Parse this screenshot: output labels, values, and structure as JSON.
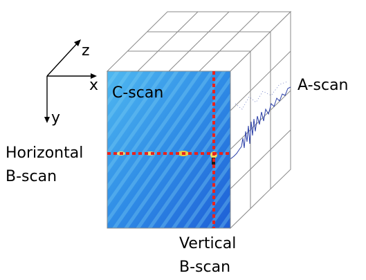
{
  "axes": {
    "x_label": "x",
    "y_label": "y",
    "z_label": "z"
  },
  "labels": {
    "c_scan": "C-scan",
    "a_scan": "A-scan",
    "horizontal_b_scan": [
      "Horizontal",
      "B-scan"
    ],
    "vertical_b_scan": [
      "Vertical",
      "B-scan"
    ]
  },
  "colors": {
    "scan_blue": "#2f8ce6",
    "scan_deep_blue": "#1e5fd6",
    "scan_light": "#4fb8f0",
    "cut_line_red": "#e8231e",
    "a_scan_trace": "#2b3fa8",
    "grid_gray": "#8a8a8a"
  }
}
